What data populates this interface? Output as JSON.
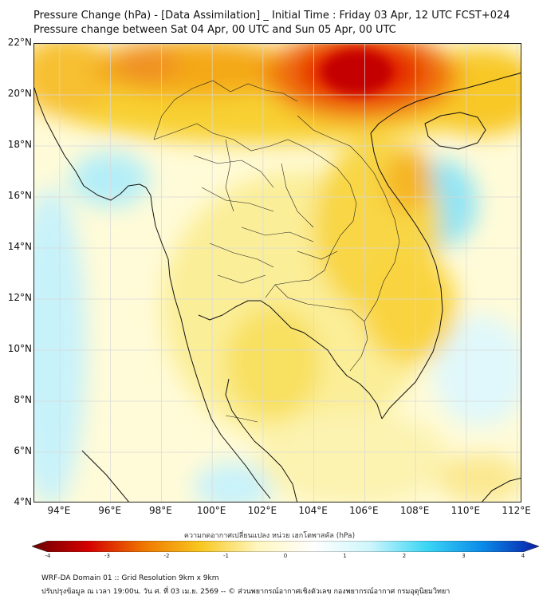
{
  "header": {
    "title": "Pressure Change (hPa) - [Data Assimilation] _ Initial Time : Friday 03 Apr, 12 UTC FCST+024",
    "subtitle": "Pressure change between Sat 04 Apr, 00 UTC and Sun 05 Apr, 00 UTC"
  },
  "map": {
    "lat_labels": [
      "22°N",
      "20°N",
      "18°N",
      "16°N",
      "14°N",
      "12°N",
      "10°N",
      "8°N",
      "6°N",
      "4°N"
    ],
    "lon_labels": [
      "94°E",
      "96°E",
      "98°E",
      "100°E",
      "102°E",
      "104°E",
      "106°E",
      "108°E",
      "110°E",
      "112°E"
    ],
    "lat_range": [
      4,
      22
    ],
    "lon_range": [
      93,
      112.2
    ],
    "grid": true,
    "colors": {
      "strong_fall": "#d40000",
      "fall": "#f5a000",
      "slight_fall": "#f8dc3c",
      "neutral": "#fffbd8",
      "rise": "#a8ecf8"
    }
  },
  "colorbar": {
    "title": "ความกดอากาศเปลี่ยนแปลง หน่วย เฮกโตพาสคัล (hPa)",
    "ticks": [
      "-4",
      "-3",
      "-2",
      "-1",
      "0",
      "1",
      "2",
      "3",
      "4"
    ],
    "range": [
      -4,
      4
    ],
    "colors": [
      "#6b0000",
      "#d40000",
      "#f07800",
      "#f8c820",
      "#fff6c0",
      "#ffffff",
      "#cdf6fc",
      "#3cd6f5",
      "#0a8ae8",
      "#0a1ea8"
    ]
  },
  "footer": {
    "line1": "WRF-DA Domain 01 :: Grid Resolution 9km x 9km",
    "line2": "ปรับปรุงข้อมูล ณ เวลา 19:00น. วัน ศ. ที่ 03 เม.ย. 2569 -- © ส่วนพยากรณ์อากาศเชิงตัวเลข กองพยากรณ์อากาศ กรมอุตุนิยมวิทยา"
  }
}
